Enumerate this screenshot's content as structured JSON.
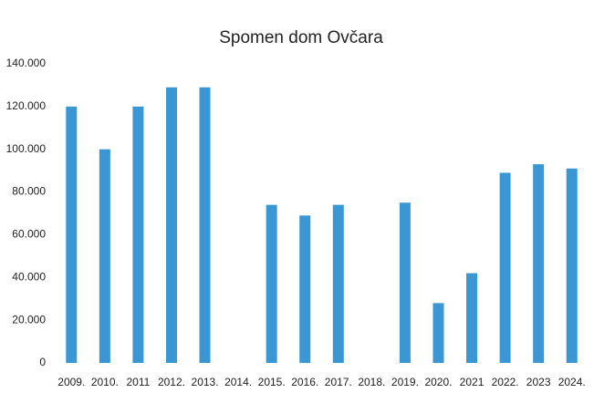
{
  "chart_data": {
    "type": "bar",
    "title": "Spomen dom Ovčara",
    "categories": [
      "2009.",
      "2010.",
      "2011",
      "2012.",
      "2013.",
      "2014.",
      "2015.",
      "2016.",
      "2017.",
      "2018.",
      "2019.",
      "2020.",
      "2021",
      "2022.",
      "2023",
      "2024."
    ],
    "values": [
      120000,
      100000,
      120000,
      129000,
      129000,
      null,
      74000,
      69000,
      74000,
      null,
      75000,
      28000,
      42000,
      89000,
      93000,
      91000
    ],
    "color": "#3a97d4",
    "ylim": [
      0,
      140000
    ],
    "yticks": [
      0,
      {
        "value": 20000,
        "label": "20.000"
      },
      {
        "value": 40000,
        "label": "40.000"
      },
      {
        "value": 60000,
        "label": "60.000"
      },
      {
        "value": 80000,
        "label": "80.000"
      },
      {
        "value": 100000,
        "label": "100.000"
      },
      {
        "value": 120000,
        "label": "120.000"
      },
      {
        "value": 140000,
        "label": "140.000"
      }
    ],
    "grid": false
  }
}
